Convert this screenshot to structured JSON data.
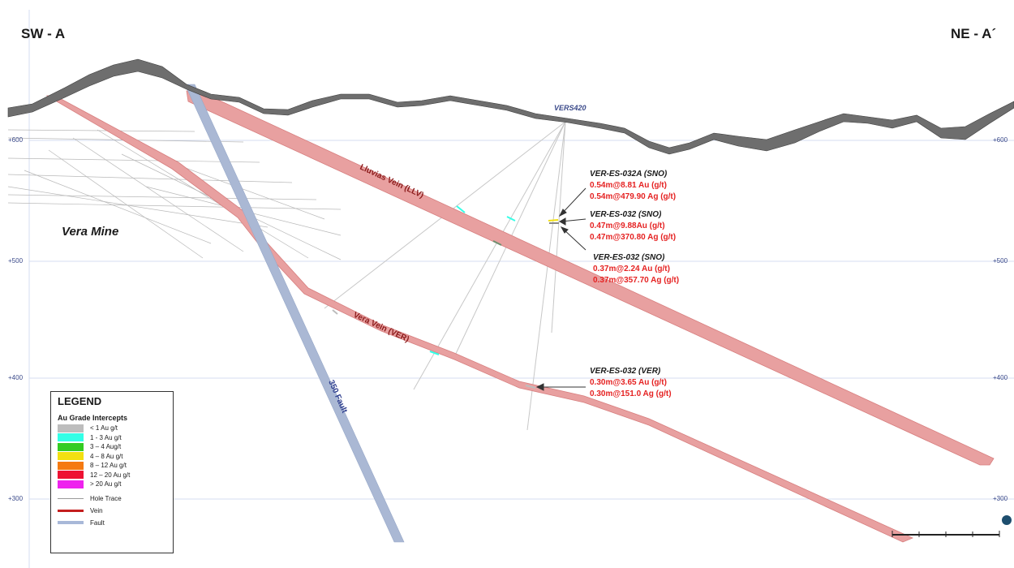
{
  "section": {
    "left_label": "SW - A",
    "right_label": "NE - A´",
    "elevation_labels": [
      "+600",
      "+500",
      "+400",
      "+300"
    ]
  },
  "features": {
    "mine_label": "Vera Mine",
    "llv_label": "Lluvias Vein (LLV)",
    "ver_label": "Vera Vein (VER)",
    "fault_label": "350 Fault",
    "drillhole_label": "VERS420"
  },
  "callouts": [
    {
      "hole": "VER-ES-032A (SNO)",
      "lines": [
        "0.54m@8.81 Au (g/t)",
        "0.54m@479.90  Ag (g/t)"
      ]
    },
    {
      "hole": "VER-ES-032 (SNO)",
      "lines": [
        "0.47m@9.88Au (g/t)",
        "0.47m@370.80 Ag (g/t)"
      ]
    },
    {
      "hole": "VER-ES-032 (SNO)",
      "lines": [
        "0.37m@2.24 Au (g/t)",
        "0.37m@357.70 Ag (g/t)"
      ]
    },
    {
      "hole": "VER-ES-032 (VER)",
      "lines": [
        "0.30m@3.65 Au (g/t)",
        "0.30m@151.0 Ag (g/t)"
      ]
    }
  ],
  "legend": {
    "title": "LEGEND",
    "subtitle": "Au Grade Intercepts",
    "grades": [
      {
        "label": "< 1 Au g/t",
        "color": "#bdbdbd"
      },
      {
        "label": "1 - 3 Au g/t",
        "color": "#33ffe6"
      },
      {
        "label": "3 – 4 Aug/t",
        "color": "#33cc22"
      },
      {
        "label": "4 – 8 Au g/t",
        "color": "#f2e011"
      },
      {
        "label": "8 – 12 Au g/t",
        "color": "#f57a11"
      },
      {
        "label": "12 – 20 Au g/t",
        "color": "#ee1133"
      },
      {
        "label": "> 20 Au g/t",
        "color": "#ee22ee"
      }
    ],
    "lines": [
      {
        "label": "Hole Trace",
        "color": "#9a9a9a",
        "weight": 1
      },
      {
        "label": "Vein",
        "color": "#c41e1e",
        "weight": 3
      },
      {
        "label": "Fault",
        "color": "#a8b8d8",
        "weight": 4
      }
    ]
  },
  "colors": {
    "vein_fill": "#e8a0a0",
    "vein_edge": "#d77e7e",
    "fault": "#aab8d4",
    "topography": "#6e6e6e",
    "hole_trace": "#c7c7c7"
  }
}
